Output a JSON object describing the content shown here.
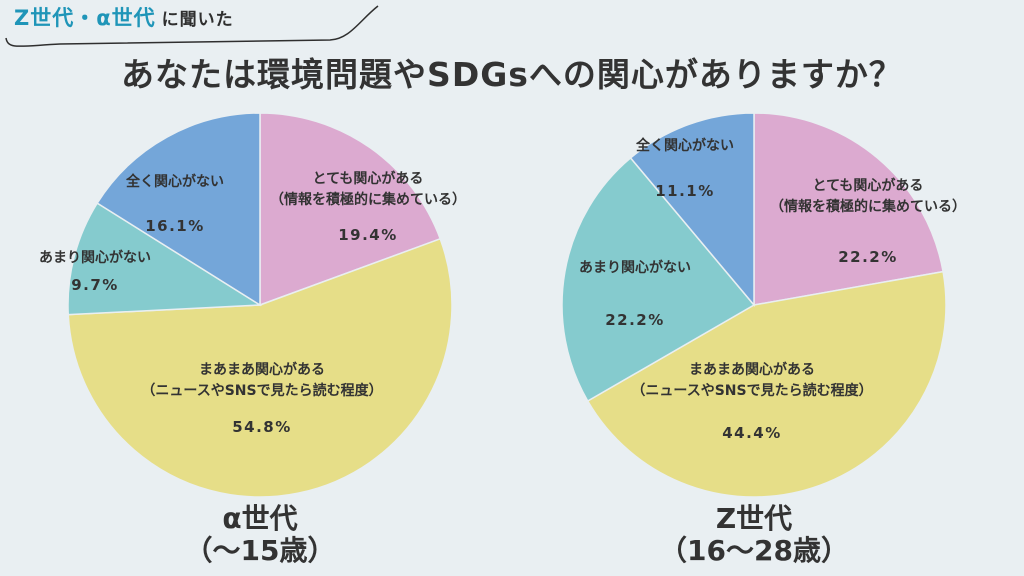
{
  "header": {
    "tag_highlight": "Z世代・α世代",
    "tag_rest": "に聞いた",
    "title": "あなたは環境問題やSDGsへの関心がありますか？"
  },
  "colors": {
    "very": "#dcaad0",
    "somewhat": "#e6de88",
    "little": "#85cbce",
    "none": "#74a6d9",
    "accent": "#1f95b8",
    "background": "#e9eff2"
  },
  "chart_data": [
    {
      "type": "pie",
      "caption": "α世代",
      "caption_sub": "（〜15歳）",
      "slices": [
        {
          "key": "very",
          "label": [
            "とても関心がある",
            "（情報を積極的に集めている）"
          ],
          "value": 19.4,
          "value_label": "19.4%"
        },
        {
          "key": "somewhat",
          "label": [
            "まあまあ関心がある",
            "（ニュースやSNSで見たら読む程度）"
          ],
          "value": 54.8,
          "value_label": "54.8%"
        },
        {
          "key": "little",
          "label": [
            "あまり関心がない"
          ],
          "value": 9.7,
          "value_label": "9.7%"
        },
        {
          "key": "none",
          "label": [
            "全く関心がない"
          ],
          "value": 16.1,
          "value_label": "16.1%"
        }
      ]
    },
    {
      "type": "pie",
      "caption": "Z世代",
      "caption_sub": "（16〜28歳）",
      "slices": [
        {
          "key": "very",
          "label": [
            "とても関心がある",
            "（情報を積極的に集めている）"
          ],
          "value": 22.2,
          "value_label": "22.2%"
        },
        {
          "key": "somewhat",
          "label": [
            "まあまあ関心がある",
            "（ニュースやSNSで見たら読む程度）"
          ],
          "value": 44.4,
          "value_label": "44.4%"
        },
        {
          "key": "little",
          "label": [
            "あまり関心がない"
          ],
          "value": 22.2,
          "value_label": "22.2%"
        },
        {
          "key": "none",
          "label": [
            "全く関心がない"
          ],
          "value": 11.1,
          "value_label": "11.1%"
        }
      ]
    }
  ]
}
